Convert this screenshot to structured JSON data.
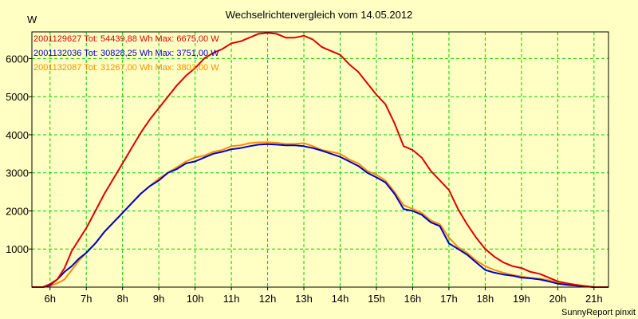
{
  "chart_data": {
    "type": "line",
    "title": "Wechselrichtervergleich vom 14.05.2012",
    "ylabel": "W",
    "xlabel": "",
    "footer": "SunnyReport pinxit",
    "background": "#ffffc4",
    "grid": true,
    "grid_color": "#00cc00",
    "axis_color": "#000000",
    "xlim": [
      5.5,
      21.4
    ],
    "ylim": [
      0,
      6700
    ],
    "x_ticks": [
      6,
      7,
      8,
      9,
      10,
      11,
      12,
      13,
      14,
      15,
      16,
      17,
      18,
      19,
      20,
      21
    ],
    "x_tick_labels": [
      "6h",
      "7h",
      "8h",
      "9h",
      "10h",
      "11h",
      "12h",
      "13h",
      "14h",
      "15h",
      "16h",
      "17h",
      "18h",
      "19h",
      "20h",
      "21h"
    ],
    "y_ticks": [
      1000,
      2000,
      3000,
      4000,
      5000,
      6000
    ],
    "y_tick_labels": [
      "1000",
      "2000",
      "3000",
      "4000",
      "5000",
      "6000"
    ],
    "legend_placement": "top-left",
    "series": [
      {
        "name": "2001129627 Tot: 54439,88 Wh Max: 6675,00 W",
        "color": "#dd0000",
        "x": [
          5.5,
          5.8,
          6.0,
          6.2,
          6.4,
          6.6,
          6.8,
          7.0,
          7.25,
          7.5,
          7.75,
          8.0,
          8.25,
          8.5,
          8.75,
          9.0,
          9.25,
          9.5,
          9.75,
          10.0,
          10.25,
          10.5,
          10.75,
          11.0,
          11.25,
          11.5,
          11.75,
          12.0,
          12.25,
          12.5,
          12.75,
          13.0,
          13.25,
          13.5,
          13.75,
          14.0,
          14.25,
          14.5,
          14.75,
          15.0,
          15.25,
          15.5,
          15.75,
          16.0,
          16.25,
          16.5,
          16.75,
          17.0,
          17.25,
          17.5,
          17.75,
          18.0,
          18.25,
          18.5,
          18.75,
          19.0,
          19.25,
          19.5,
          19.75,
          20.0,
          20.25,
          20.5,
          20.75,
          21.0,
          21.4
        ],
        "y": [
          0,
          0,
          80,
          200,
          500,
          950,
          1250,
          1550,
          2000,
          2450,
          2850,
          3250,
          3650,
          4050,
          4400,
          4700,
          5000,
          5300,
          5550,
          5750,
          6000,
          6150,
          6250,
          6400,
          6450,
          6550,
          6650,
          6675,
          6650,
          6550,
          6550,
          6600,
          6500,
          6300,
          6200,
          6100,
          5850,
          5650,
          5350,
          5050,
          4800,
          4300,
          3700,
          3600,
          3400,
          3050,
          2800,
          2550,
          2050,
          1650,
          1300,
          1000,
          800,
          650,
          550,
          500,
          400,
          350,
          250,
          150,
          100,
          60,
          30,
          0,
          0
        ]
      },
      {
        "name": "2001132036 Tot: 30828,25 Wh Max: 3751,00 W",
        "color": "#0000cc",
        "x": [
          5.5,
          5.8,
          6.0,
          6.2,
          6.4,
          6.6,
          6.8,
          7.0,
          7.25,
          7.5,
          7.75,
          8.0,
          8.25,
          8.5,
          8.75,
          9.0,
          9.25,
          9.5,
          9.75,
          10.0,
          10.25,
          10.5,
          10.75,
          11.0,
          11.25,
          11.5,
          11.75,
          12.0,
          12.25,
          12.5,
          12.75,
          13.0,
          13.25,
          13.5,
          13.75,
          14.0,
          14.25,
          14.5,
          14.75,
          15.0,
          15.25,
          15.5,
          15.75,
          16.0,
          16.25,
          16.5,
          16.75,
          17.0,
          17.25,
          17.5,
          17.75,
          18.0,
          18.25,
          18.5,
          18.75,
          19.0,
          19.25,
          19.5,
          19.75,
          20.0,
          20.25,
          20.5,
          20.75,
          21.0,
          21.4
        ],
        "y": [
          0,
          0,
          50,
          200,
          400,
          550,
          750,
          900,
          1150,
          1450,
          1700,
          1950,
          2200,
          2450,
          2650,
          2800,
          3000,
          3100,
          3250,
          3300,
          3400,
          3500,
          3550,
          3620,
          3650,
          3700,
          3740,
          3751,
          3740,
          3720,
          3720,
          3700,
          3650,
          3580,
          3500,
          3420,
          3300,
          3180,
          3000,
          2880,
          2750,
          2450,
          2050,
          2000,
          1900,
          1700,
          1600,
          1150,
          1000,
          850,
          650,
          450,
          380,
          330,
          300,
          250,
          230,
          200,
          150,
          90,
          60,
          40,
          20,
          0,
          0
        ]
      },
      {
        "name": "2001132087 Tot: 31267,00 Wh Max: 3803,00 W",
        "color": "#ff8c00",
        "x": [
          5.5,
          5.8,
          6.0,
          6.2,
          6.4,
          6.6,
          6.8,
          7.0,
          7.25,
          7.5,
          7.75,
          8.0,
          8.25,
          8.5,
          8.75,
          9.0,
          9.25,
          9.5,
          9.75,
          10.0,
          10.25,
          10.5,
          10.75,
          11.0,
          11.25,
          11.5,
          11.75,
          12.0,
          12.25,
          12.5,
          12.75,
          13.0,
          13.25,
          13.5,
          13.75,
          14.0,
          14.25,
          14.5,
          14.75,
          15.0,
          15.25,
          15.5,
          15.75,
          16.0,
          16.25,
          16.5,
          16.75,
          17.0,
          17.25,
          17.5,
          17.75,
          18.0,
          18.25,
          18.5,
          18.75,
          19.0,
          19.25,
          19.5,
          19.75,
          20.0,
          20.25,
          20.5,
          20.75,
          21.0,
          21.4
        ],
        "y": [
          0,
          0,
          30,
          100,
          200,
          450,
          700,
          900,
          1150,
          1450,
          1700,
          1950,
          2200,
          2450,
          2650,
          2850,
          3000,
          3150,
          3300,
          3400,
          3450,
          3550,
          3600,
          3700,
          3720,
          3780,
          3800,
          3803,
          3790,
          3760,
          3760,
          3780,
          3700,
          3600,
          3550,
          3500,
          3350,
          3250,
          3050,
          2950,
          2800,
          2500,
          2150,
          2050,
          1950,
          1750,
          1650,
          1300,
          1050,
          900,
          700,
          550,
          450,
          380,
          320,
          280,
          240,
          220,
          180,
          120,
          80,
          40,
          20,
          0,
          0
        ]
      }
    ]
  }
}
